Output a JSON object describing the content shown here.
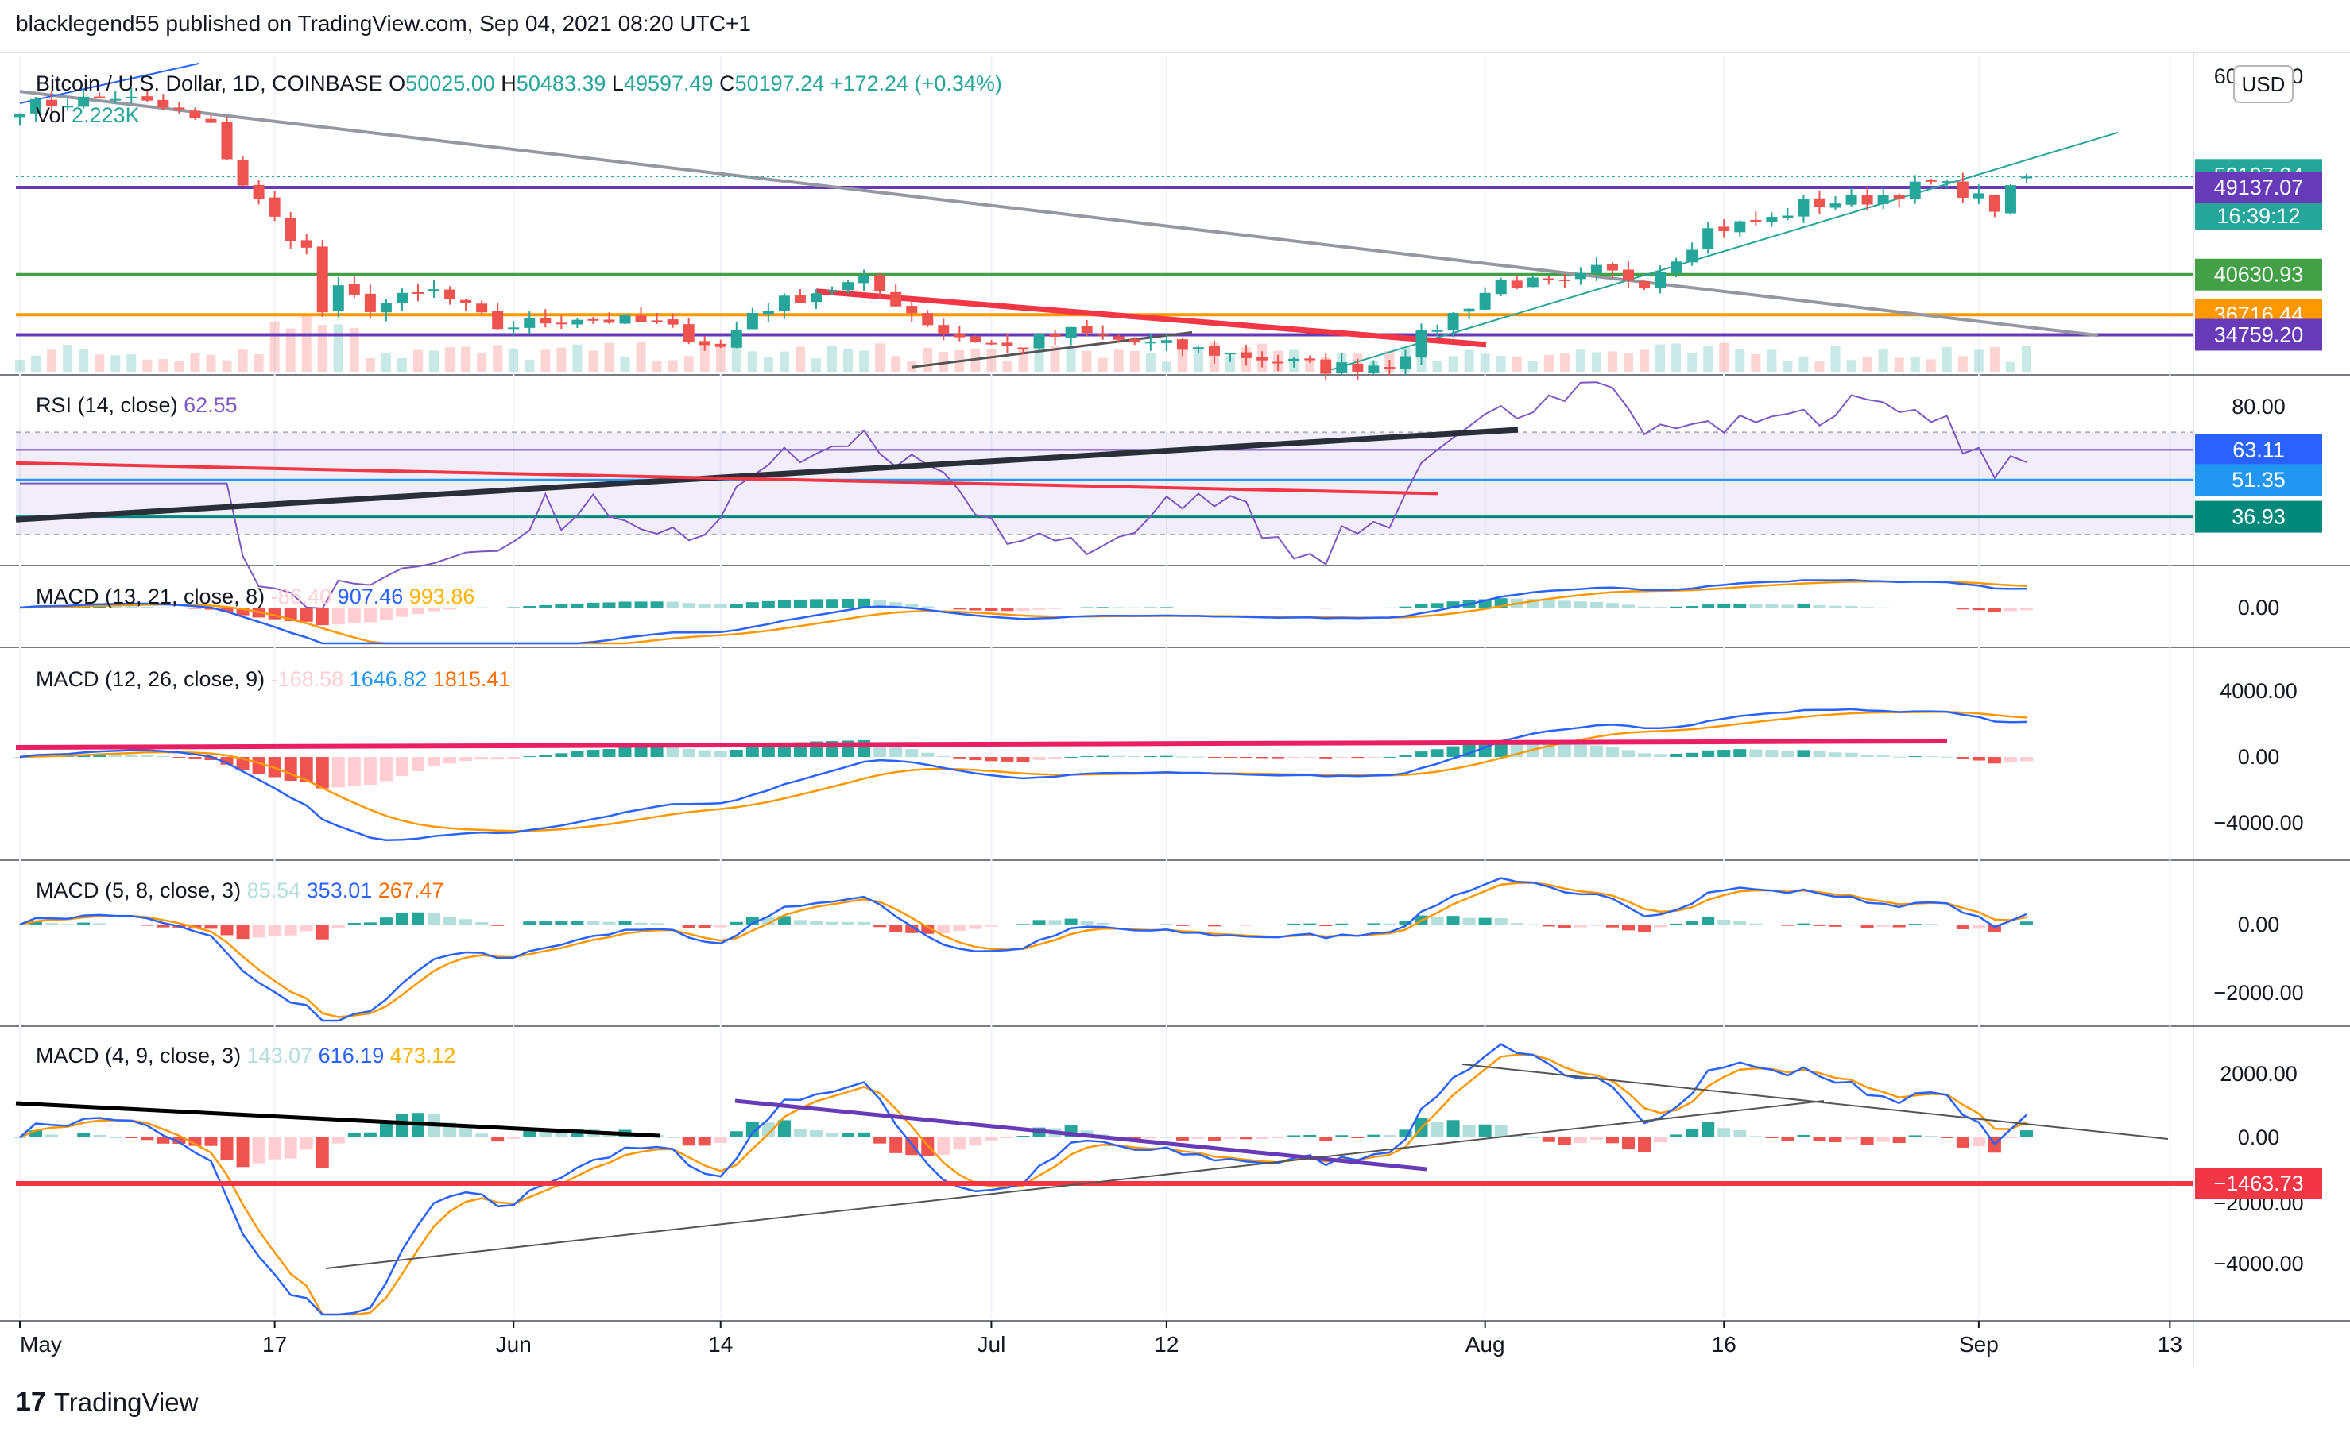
{
  "header": {
    "publisher": "blacklegend55 published on TradingView.com, Sep 04, 2021 08:20 UTC+1"
  },
  "price_panel": {
    "symbol": "Bitcoin / U.S. Dollar, 1D, COINBASE",
    "open_label": "O",
    "open": "50025.00",
    "high_label": "H",
    "high": "50483.39",
    "low_label": "L",
    "low": "49597.49",
    "close_label": "C",
    "close": "50197.24",
    "change": "+172.24 (+0.34%)",
    "vol_label": "Vol",
    "vol": "2.223K",
    "currency": "USD",
    "countdown": "16:39:12"
  },
  "chart_data": [
    {
      "type": "candlestick",
      "pane": "price",
      "ylim": [
        31000,
        62000
      ],
      "y_ticks": [
        "60000.00"
      ],
      "x_ticks": [
        "May",
        "17",
        "Jun",
        "14",
        "Jul",
        "12",
        "Aug",
        "16",
        "Sep",
        "13"
      ],
      "ohlc_first_and_last": {
        "first_close": 57000,
        "last": {
          "open": 50025.0,
          "high": 50483.39,
          "low": 49597.49,
          "close": 50197.24
        }
      },
      "price_labels": [
        {
          "value": "50197.24",
          "color": "#26a69a"
        },
        {
          "value": "49137.07",
          "color": "#673ab7"
        },
        {
          "value": "40630.93",
          "color": "#43a047"
        },
        {
          "value": "36716.44",
          "color": "#ff9800"
        },
        {
          "value": "34759.20",
          "color": "#673ab7"
        }
      ],
      "horizontal_lines": [
        {
          "value": 49137.07,
          "color": "#673ab7"
        },
        {
          "value": 40630.93,
          "color": "#43a047"
        },
        {
          "value": 36716.44,
          "color": "#ff9800"
        },
        {
          "value": 34759.2,
          "color": "#673ab7"
        }
      ]
    },
    {
      "type": "line",
      "pane": "rsi",
      "title": "RSI (14, close)",
      "value": "62.55",
      "y_ticks": [
        "80.00"
      ],
      "price_labels": [
        {
          "value": "63.11",
          "color": "#2962ff"
        },
        {
          "value": "51.35",
          "color": "#2196f3"
        },
        {
          "value": "36.93",
          "color": "#00897b"
        }
      ],
      "band": [
        30,
        70
      ]
    },
    {
      "type": "line",
      "pane": "macd1",
      "title": "MACD (13, 21, close, 8)",
      "values": [
        "-86.40",
        "907.46",
        "993.86"
      ],
      "y_ticks": [
        "0.00"
      ]
    },
    {
      "type": "line",
      "pane": "macd2",
      "title": "MACD (12, 26, close, 9)",
      "values": [
        "-168.58",
        "1646.82",
        "1815.41"
      ],
      "y_ticks": [
        "4000.00",
        "0.00",
        "−4000.00"
      ]
    },
    {
      "type": "line",
      "pane": "macd3",
      "title": "MACD (5, 8, close, 3)",
      "values": [
        "85.54",
        "353.01",
        "267.47"
      ],
      "y_ticks": [
        "0.00",
        "−2000.00"
      ]
    },
    {
      "type": "line",
      "pane": "macd4",
      "title": "MACD (4, 9, close, 3)",
      "values": [
        "143.07",
        "616.19",
        "473.12"
      ],
      "y_ticks": [
        "2000.00",
        "0.00",
        "−2000.00",
        "−4000.00"
      ],
      "price_labels": [
        {
          "value": "−1463.73",
          "color": "#f23645"
        }
      ]
    }
  ],
  "colors": {
    "up": "#26a69a",
    "down": "#ef5350",
    "macd": "#2962ff",
    "signal": "#ff9800",
    "rsi": "#7e57c2"
  },
  "footer": {
    "brand": "TradingView",
    "logo": "17"
  }
}
